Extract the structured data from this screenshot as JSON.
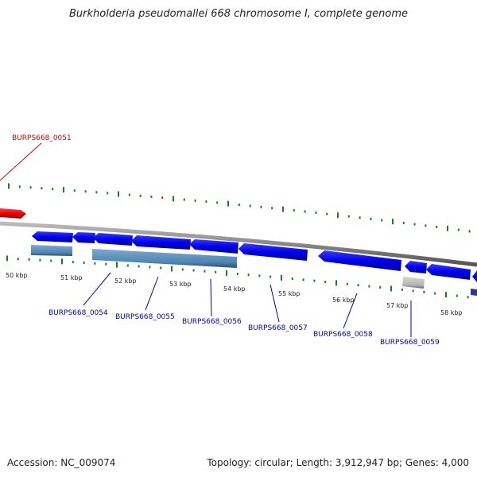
{
  "title": "Burkholderia pseudomallei 668 chromosome I, complete genome",
  "footer": {
    "accession": "Accession: NC_009074",
    "summary": "Topology: circular; Length: 3,912,947 bp; Genes: 4,000"
  },
  "ruler_labels": [
    "50 kbp",
    "51 kbp",
    "52 kbp",
    "53 kbp",
    "54 kbp",
    "55 kbp",
    "56 kbp",
    "57 kbp",
    "58 kbp"
  ],
  "gene_labels": [
    {
      "name": "BURPS668_0051",
      "color": "#cc0000"
    },
    {
      "name": "BURPS668_0054",
      "color": "#0000aa"
    },
    {
      "name": "BURPS668_0055",
      "color": "#0000aa"
    },
    {
      "name": "BURPS668_0056",
      "color": "#0000aa"
    },
    {
      "name": "BURPS668_0057",
      "color": "#0000aa"
    },
    {
      "name": "BURPS668_0058",
      "color": "#0000aa"
    },
    {
      "name": "BURPS668_0059",
      "color": "#0000aa"
    }
  ],
  "colors": {
    "forward_gene": "#cc0000",
    "reverse_gene": "#0000dd",
    "rna_bar": "#4f86b3",
    "pseudo_bar": "#b5b5b5",
    "ticks": "#1a7f1a",
    "backbone": "#888888"
  }
}
